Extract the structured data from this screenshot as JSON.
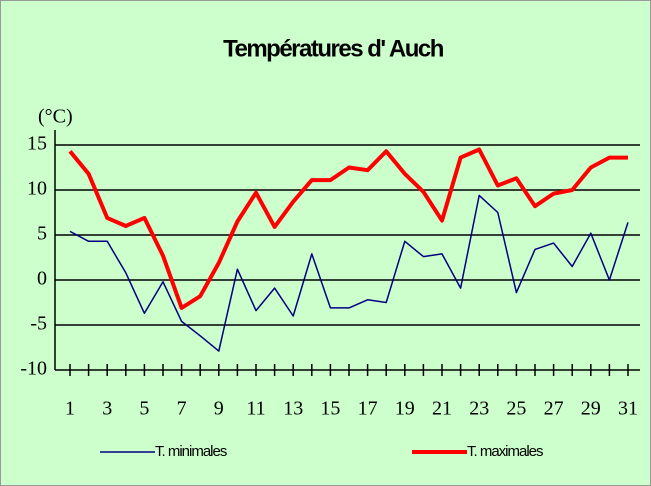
{
  "chart_data": {
    "type": "line",
    "title": "Températures d' Auch",
    "y_unit": "(°C)",
    "categories": [
      1,
      null,
      3,
      null,
      5,
      null,
      7,
      null,
      9,
      null,
      11,
      null,
      13,
      null,
      15,
      null,
      17,
      null,
      19,
      null,
      21,
      null,
      23,
      null,
      25,
      null,
      27,
      null,
      29,
      null,
      31
    ],
    "series": [
      {
        "name": "T. minimales",
        "color": "#000080",
        "width": 1.5,
        "values": [
          5.4,
          4.3,
          4.3,
          0.8,
          -3.7,
          -0.2,
          -4.6,
          -6.2,
          -7.9,
          1.2,
          -3.4,
          -0.9,
          -4.0,
          2.9,
          -3.1,
          -3.1,
          -2.2,
          -2.5,
          4.3,
          2.6,
          2.9,
          -0.9,
          9.4,
          7.5,
          -1.4,
          3.4,
          4.1,
          1.5,
          5.2,
          0,
          6.4
        ]
      },
      {
        "name": "T. maximales",
        "color": "#ff0000",
        "width": 4,
        "values": [
          14.3,
          11.8,
          6.9,
          6.0,
          6.9,
          2.7,
          -3.1,
          -1.8,
          1.9,
          6.5,
          9.7,
          5.9,
          8.7,
          11.1,
          11.1,
          12.5,
          12.2,
          14.3,
          11.8,
          9.8,
          6.6,
          13.6,
          14.5,
          10.5,
          11.3,
          8.2,
          9.6,
          10.0,
          12.5,
          13.6,
          13.6
        ]
      }
    ],
    "ylim": [
      -10,
      15
    ],
    "yticks": [
      -10,
      -5,
      0,
      5,
      10,
      15
    ],
    "grid": true,
    "legend": "bottom"
  }
}
